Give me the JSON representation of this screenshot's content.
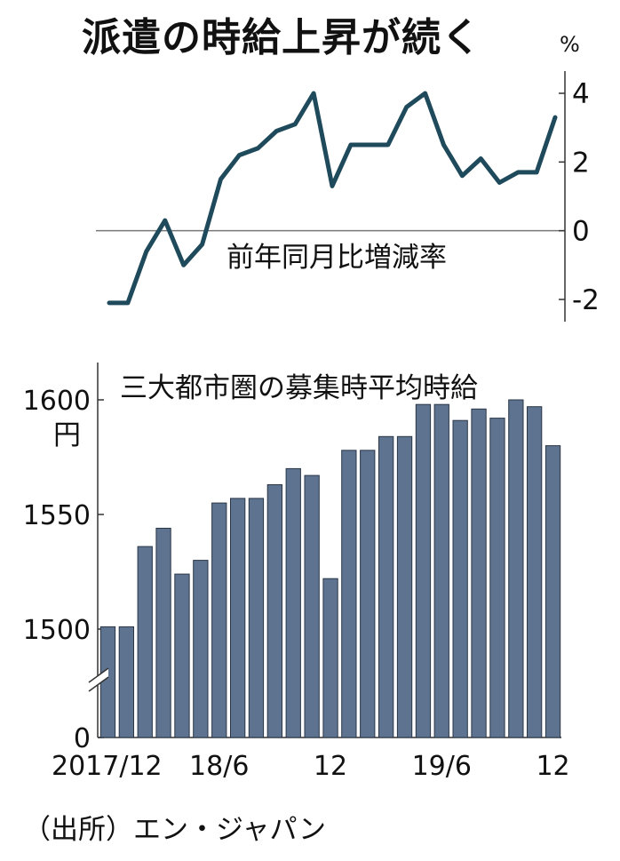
{
  "title": "派遣の時給上昇が続く",
  "source": "（出所）エン・ジャパン",
  "colors": {
    "line": "#1f4a5c",
    "bar": "#5e7390",
    "bar_edge": "#2a3646",
    "axis": "#333333"
  },
  "chart_data": [
    {
      "type": "line",
      "title": "",
      "annotation": "前年同月比増減率",
      "unit": "%",
      "x": [
        "2017/12",
        "2018/1",
        "2018/2",
        "2018/3",
        "2018/4",
        "2018/5",
        "2018/6",
        "2018/7",
        "2018/8",
        "2018/9",
        "2018/10",
        "2018/11",
        "2018/12",
        "2019/1",
        "2019/2",
        "2019/3",
        "2019/4",
        "2019/5",
        "2019/6",
        "2019/7",
        "2019/8",
        "2019/9",
        "2019/10",
        "2019/11",
        "2019/12"
      ],
      "series": [
        {
          "values": [
            -2.1,
            -2.1,
            -0.6,
            0.3,
            -1.0,
            -0.4,
            1.5,
            2.2,
            2.4,
            2.9,
            3.1,
            4.0,
            1.3,
            2.5,
            2.5,
            2.5,
            3.6,
            4.0,
            2.5,
            1.6,
            2.1,
            1.4,
            1.7,
            1.7,
            3.3
          ]
        }
      ],
      "yticks": [
        4,
        2,
        0,
        -2
      ],
      "ytick_labels": [
        "4",
        "2",
        "0",
        "-2"
      ],
      "ylim": [
        -2.6,
        4.4
      ],
      "yaxis_position": "right",
      "baseline": 0
    },
    {
      "type": "bar",
      "title": "三大都市圏の募集時平均時給",
      "unit": "円",
      "categories": [
        "2017/12",
        "2018/1",
        "2018/2",
        "2018/3",
        "2018/4",
        "2018/5",
        "2018/6",
        "2018/7",
        "2018/8",
        "2018/9",
        "2018/10",
        "2018/11",
        "2018/12",
        "2019/1",
        "2019/2",
        "2019/3",
        "2019/4",
        "2019/5",
        "2019/6",
        "2019/7",
        "2019/8",
        "2019/9",
        "2019/10",
        "2019/11",
        "2019/12"
      ],
      "values": [
        1501,
        1501,
        1536,
        1544,
        1524,
        1530,
        1555,
        1557,
        1557,
        1563,
        1570,
        1567,
        1522,
        1578,
        1578,
        1584,
        1584,
        1598,
        1598,
        1591,
        1596,
        1592,
        1600,
        1597,
        1580
      ],
      "yticks": [
        1600,
        1550,
        1500,
        0
      ],
      "ytick_labels": [
        "1600",
        "1550",
        "1500",
        "0"
      ],
      "axis_break": "between 0 and 1500",
      "xtick_labels": [
        {
          "index": 0,
          "label": "2017/12"
        },
        {
          "index": 6,
          "label": "18/6"
        },
        {
          "index": 12,
          "label": "12"
        },
        {
          "index": 18,
          "label": "19/6"
        },
        {
          "index": 24,
          "label": "12"
        }
      ]
    }
  ]
}
